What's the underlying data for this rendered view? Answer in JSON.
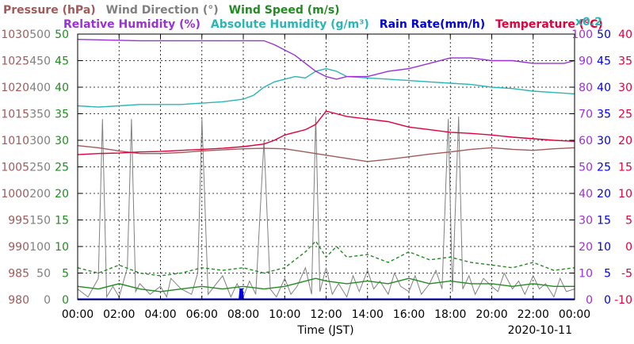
{
  "chart_data": {
    "type": "line",
    "date": "2020-10-11",
    "xlabel": "Time (JST)",
    "x_ticks": [
      "00:00",
      "02:00",
      "04:00",
      "06:00",
      "08:00",
      "10:00",
      "12:00",
      "14:00",
      "16:00",
      "18:00",
      "20:00",
      "22:00",
      "00:00"
    ],
    "xlim_hours": [
      0,
      24
    ],
    "grid": true,
    "legend_placement": "top",
    "legend": [
      {
        "name": "Pressure (hPa)",
        "color": "#a05a5a"
      },
      {
        "name": "Wind Direction (°)",
        "color": "#808080"
      },
      {
        "name": "Wind Speed (m/s)",
        "color": "#228b22"
      },
      {
        "name": "Relative Humidity (%)",
        "color": "#9b30d8"
      },
      {
        "name": "Absolute Humidity (g/m³)",
        "color": "#2bb5b5"
      },
      {
        "name": "Rain Rate(mm/h)",
        "color": "#0000e0"
      },
      {
        "name": "Temperature (°C)",
        "color": "#e0003c"
      },
      {
        "name": "x0.2",
        "color": "#2bb5b5"
      }
    ],
    "axes": {
      "pressure": {
        "ticks": [
          980,
          985,
          990,
          995,
          1000,
          1005,
          1010,
          1015,
          1020,
          1025,
          1030
        ],
        "range": [
          980,
          1030
        ],
        "color": "#a05a5a"
      },
      "wind_direction": {
        "ticks": [
          0,
          50,
          100,
          150,
          200,
          250,
          300,
          350,
          400,
          450,
          500
        ],
        "range": [
          0,
          500
        ],
        "color": "#808080"
      },
      "wind_speed": {
        "ticks": [
          0,
          5,
          10,
          15,
          20,
          25,
          30,
          35,
          40,
          45,
          50
        ],
        "range": [
          0,
          50
        ],
        "color": "#228b22"
      },
      "humidity": {
        "ticks": [
          0,
          10,
          20,
          30,
          40,
          50,
          60,
          70,
          80,
          90,
          100
        ],
        "range": [
          0,
          100
        ],
        "color": "#9b30d8"
      },
      "rain_rate": {
        "ticks": [
          0,
          5,
          10,
          15,
          20,
          25,
          30,
          35,
          40,
          45,
          50
        ],
        "range": [
          0,
          50
        ],
        "color": "#0000e0"
      },
      "temperature": {
        "ticks": [
          -10,
          -5,
          0,
          5,
          10,
          15,
          20,
          25,
          30,
          35,
          40
        ],
        "range": [
          -10,
          40
        ],
        "color": "#e0003c"
      }
    },
    "series": [
      {
        "name": "Relative Humidity (%)",
        "axis": "humidity",
        "color": "#9b30d8",
        "x": [
          0,
          3,
          5,
          7,
          9,
          9.5,
          10,
          10.5,
          11,
          11.5,
          12,
          12.5,
          13,
          14,
          15,
          16,
          17,
          18,
          19,
          20,
          21,
          22,
          23,
          23.5,
          24
        ],
        "y": [
          98,
          97.5,
          97.5,
          97.5,
          97.5,
          96,
          94,
          92,
          89,
          86,
          84,
          83,
          84,
          84,
          86,
          87,
          89,
          91,
          91,
          90,
          90,
          89,
          89,
          89,
          90
        ]
      },
      {
        "name": "Absolute Humidity (g/m³)",
        "axis": "humidity",
        "color": "#2bb5b5",
        "x": [
          0,
          1,
          2,
          3,
          4,
          5,
          6,
          7,
          8,
          8.5,
          9,
          9.5,
          10,
          10.5,
          11,
          11.5,
          12,
          12.5,
          13,
          14,
          15,
          16,
          17,
          18,
          19,
          20,
          21,
          22,
          23,
          24
        ],
        "y": [
          73,
          72.5,
          73,
          73.5,
          73.5,
          73.5,
          74,
          74.5,
          75.5,
          77,
          80,
          82,
          83,
          84,
          83.5,
          86,
          87,
          86,
          84,
          83.5,
          83,
          82.5,
          82,
          81.5,
          81,
          80,
          79.5,
          78.5,
          78,
          77.5
        ]
      },
      {
        "name": "Temperature (°C)",
        "axis": "temperature",
        "color": "#e0003c",
        "x": [
          0,
          1,
          2,
          3,
          4,
          5,
          6,
          7,
          8,
          9,
          9.5,
          10,
          10.5,
          11,
          11.5,
          12,
          12.5,
          13,
          14,
          15,
          16,
          17,
          18,
          19,
          20,
          21,
          22,
          23,
          24
        ],
        "y": [
          17.3,
          17.5,
          17.6,
          17.8,
          17.9,
          18.1,
          18.3,
          18.5,
          18.8,
          19.3,
          20,
          21,
          21.5,
          22,
          23,
          25.5,
          25,
          24.5,
          24,
          23.5,
          22.5,
          22,
          21.5,
          21.3,
          21,
          20.6,
          20.3,
          20,
          19.8
        ]
      },
      {
        "name": "Pressure (hPa)",
        "axis": "pressure",
        "color": "#a05a5a",
        "x": [
          0,
          1,
          2,
          3,
          4,
          5,
          6,
          7,
          8,
          9,
          10,
          11,
          12,
          13,
          14,
          15,
          16,
          17,
          18,
          19,
          20,
          21,
          22,
          23,
          24
        ],
        "y": [
          1009,
          1008.6,
          1008,
          1007.5,
          1007.5,
          1007.7,
          1008,
          1008.2,
          1008.4,
          1008.5,
          1008.4,
          1007.8,
          1007.2,
          1006.6,
          1006,
          1006.4,
          1006.9,
          1007.4,
          1007.8,
          1008.3,
          1008.6,
          1008.3,
          1008.1,
          1008.4,
          1008.6
        ]
      },
      {
        "name": "Wind Direction (°)",
        "axis": "wind_direction",
        "color": "#808080",
        "x": [
          0,
          0.5,
          1,
          1.2,
          1.4,
          1.7,
          2,
          2.4,
          2.6,
          2.8,
          3,
          3.5,
          4,
          4.3,
          4.5,
          5,
          5.5,
          5.8,
          6,
          6.3,
          6.6,
          7,
          7.4,
          7.7,
          8,
          8.3,
          8.6,
          9,
          9.3,
          9.6,
          10,
          10.3,
          10.6,
          11,
          11.3,
          11.5,
          11.7,
          12,
          12.3,
          12.6,
          13,
          13.3,
          13.6,
          14,
          14.3,
          14.6,
          15,
          15.3,
          15.6,
          16,
          16.3,
          16.6,
          17,
          17.3,
          17.6,
          17.9,
          18.1,
          18.4,
          18.6,
          18.9,
          19.2,
          19.6,
          20,
          20.3,
          20.6,
          21,
          21.3,
          21.6,
          22,
          22.3,
          22.6,
          23,
          23.3,
          23.6,
          24
        ],
        "y": [
          20,
          5,
          40,
          340,
          5,
          25,
          5,
          60,
          340,
          15,
          30,
          10,
          25,
          5,
          40,
          20,
          10,
          50,
          340,
          10,
          25,
          45,
          5,
          30,
          5,
          35,
          10,
          300,
          20,
          5,
          40,
          10,
          25,
          60,
          10,
          345,
          15,
          60,
          10,
          30,
          5,
          45,
          15,
          55,
          20,
          35,
          10,
          50,
          25,
          15,
          45,
          10,
          30,
          55,
          20,
          340,
          15,
          345,
          20,
          45,
          10,
          40,
          25,
          15,
          50,
          20,
          35,
          10,
          45,
          20,
          30,
          5,
          40,
          15,
          20
        ]
      },
      {
        "name": "Wind Speed (m/s)",
        "axis": "wind_speed",
        "color": "#228b22",
        "x": [
          0,
          1,
          2,
          3,
          4,
          5,
          6,
          7,
          8,
          9,
          10,
          11,
          11.5,
          12,
          13,
          14,
          15,
          16,
          17,
          18,
          19,
          20,
          21,
          22,
          23,
          24
        ],
        "y": [
          2.5,
          2,
          3,
          2,
          1.5,
          2,
          2.5,
          2,
          2.5,
          2,
          2.5,
          3.5,
          4,
          3.5,
          3,
          3.5,
          3,
          4,
          3,
          3.5,
          3,
          3,
          2.5,
          3,
          2.5,
          2.5
        ]
      },
      {
        "name": "Wind Speed gust (m/s)",
        "axis": "wind_speed",
        "color": "#228b22",
        "x": [
          0,
          1,
          2,
          3,
          4,
          5,
          6,
          7,
          8,
          9,
          10,
          11,
          11.5,
          12,
          12.5,
          13,
          14,
          15,
          16,
          17,
          18,
          19,
          20,
          21,
          22,
          23,
          24
        ],
        "y": [
          6,
          5,
          6.5,
          5,
          4.5,
          5,
          6,
          5.5,
          6,
          5,
          6,
          9,
          11,
          8,
          10,
          8,
          8.5,
          7,
          9,
          7.5,
          8,
          7,
          6.5,
          6,
          7,
          5.5,
          6
        ]
      },
      {
        "name": "Rain Rate(mm/h)",
        "axis": "rain_rate",
        "color": "#0000e0",
        "x": [
          0,
          7.8,
          7.85,
          7.95,
          8.0,
          24
        ],
        "y": [
          0,
          0,
          2,
          2,
          0,
          0
        ]
      }
    ]
  }
}
